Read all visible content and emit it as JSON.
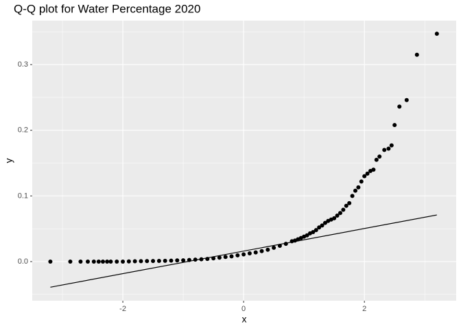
{
  "chart_data": {
    "type": "scatter",
    "title": "Q-Q plot for Water Percentage 2020",
    "x_label": "x",
    "y_label": "y",
    "series": [
      {
        "type": "scatter",
        "color": "#000000",
        "x": [
          -3.2,
          -2.87,
          -2.7,
          -2.58,
          -2.48,
          -2.4,
          -2.33,
          -2.26,
          -2.2,
          -2.1,
          -2.0,
          -1.9,
          -1.8,
          -1.7,
          -1.6,
          -1.5,
          -1.4,
          -1.3,
          -1.2,
          -1.1,
          -1.0,
          -0.9,
          -0.8,
          -0.7,
          -0.6,
          -0.5,
          -0.4,
          -0.3,
          -0.2,
          -0.1,
          0.0,
          0.1,
          0.2,
          0.3,
          0.4,
          0.5,
          0.6,
          0.7,
          0.8,
          0.85,
          0.9,
          0.95,
          1.0,
          1.05,
          1.1,
          1.15,
          1.2,
          1.25,
          1.3,
          1.35,
          1.4,
          1.45,
          1.5,
          1.55,
          1.6,
          1.65,
          1.7,
          1.75,
          1.8,
          1.85,
          1.9,
          1.95,
          2.0,
          2.05,
          2.1,
          2.15,
          2.2,
          2.25,
          2.33,
          2.4,
          2.45,
          2.5,
          2.58,
          2.7,
          2.87,
          3.2
        ],
        "values": [
          0,
          0,
          0,
          0,
          0,
          0,
          0,
          0,
          0,
          0,
          0,
          0.0003,
          0.0005,
          0.0006,
          0.0008,
          0.0009,
          0.001,
          0.0012,
          0.0015,
          0.0018,
          0.002,
          0.0025,
          0.003,
          0.0035,
          0.004,
          0.005,
          0.006,
          0.007,
          0.008,
          0.0095,
          0.011,
          0.0125,
          0.014,
          0.016,
          0.018,
          0.021,
          0.024,
          0.027,
          0.031,
          0.032,
          0.034,
          0.036,
          0.038,
          0.04,
          0.043,
          0.045,
          0.048,
          0.052,
          0.055,
          0.059,
          0.062,
          0.064,
          0.066,
          0.07,
          0.074,
          0.079,
          0.085,
          0.089,
          0.1,
          0.108,
          0.113,
          0.122,
          0.13,
          0.134,
          0.138,
          0.14,
          0.155,
          0.16,
          0.17,
          0.172,
          0.177,
          0.208,
          0.236,
          0.246,
          0.315,
          0.347
        ]
      },
      {
        "type": "line",
        "color": "#000000",
        "x": [
          -3.2,
          3.2
        ],
        "values": [
          -0.039,
          0.071
        ]
      }
    ],
    "xlim": [
      -3.5,
      3.52
    ],
    "ylim": [
      -0.0596,
      0.367
    ],
    "xticks": [
      -2,
      0,
      2
    ],
    "yticks": [
      {
        "value": 0,
        "label": "0.0"
      },
      0.1,
      0.2,
      0.3
    ],
    "minor_xticks": [
      -3,
      -1,
      1,
      3
    ],
    "minor_yticks": [
      -0.05,
      0.05,
      0.15,
      0.25,
      0.35
    ],
    "grid": true,
    "panel_color": "#ebebeb"
  }
}
